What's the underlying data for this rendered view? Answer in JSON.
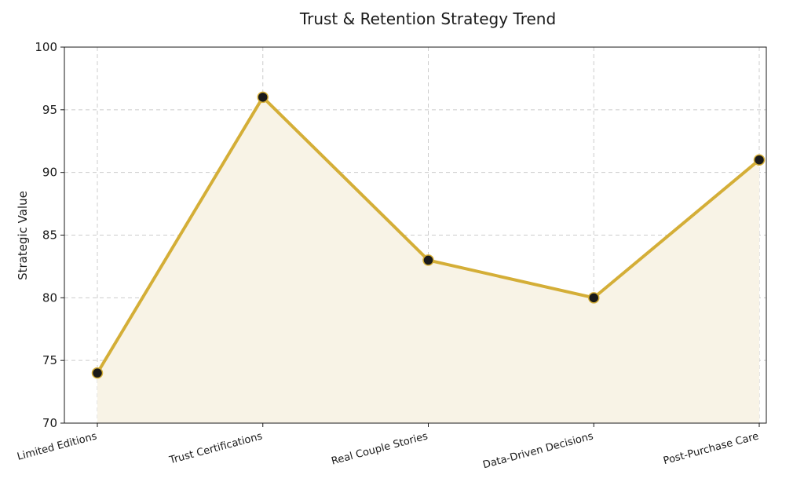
{
  "chart_data": {
    "type": "line",
    "title": "Trust & Retention Strategy Trend",
    "xlabel": "",
    "ylabel": "Strategic Value",
    "categories": [
      "Limited Editions",
      "Trust Certifications",
      "Real Couple Stories",
      "Data-Driven Decisions",
      "Post-Purchase Care"
    ],
    "values": [
      74,
      96,
      83,
      80,
      91
    ],
    "ylim": [
      70,
      100
    ],
    "yticks": [
      70,
      75,
      80,
      85,
      90,
      95,
      100
    ],
    "grid": true,
    "area_fill": true,
    "colors": {
      "line": "#d4ae37",
      "fill": "#f8f3e6",
      "marker": "#1a1a1a",
      "marker_edge": "#d4ae37"
    }
  }
}
